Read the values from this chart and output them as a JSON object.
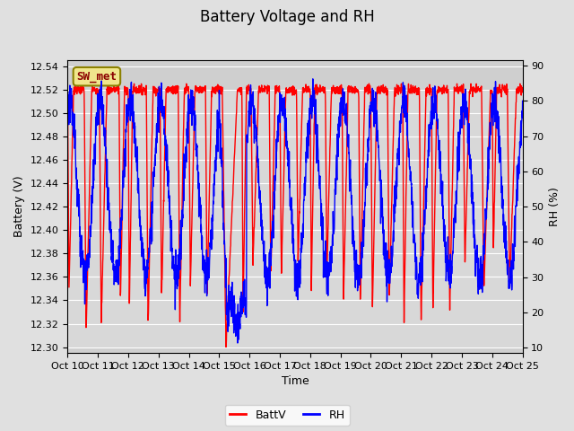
{
  "title": "Battery Voltage and RH",
  "xlabel": "Time",
  "ylabel_left": "Battery (V)",
  "ylabel_right": "RH (%)",
  "annotation": "SW_met",
  "legend_labels": [
    "BattV",
    "RH"
  ],
  "x_tick_labels": [
    "Oct 10",
    "Oct 11",
    "Oct 12",
    "Oct 13",
    "Oct 14",
    "Oct 15",
    "Oct 16",
    "Oct 17",
    "Oct 18",
    "Oct 19",
    "Oct 20",
    "Oct 21",
    "Oct 22",
    "Oct 23",
    "Oct 24",
    "Oct 25"
  ],
  "ylim_left": [
    12.295,
    12.545
  ],
  "ylim_right": [
    8.5,
    91.5
  ],
  "yticks_left": [
    12.3,
    12.32,
    12.34,
    12.36,
    12.38,
    12.4,
    12.42,
    12.44,
    12.46,
    12.48,
    12.5,
    12.52,
    12.54
  ],
  "yticks_right": [
    10,
    20,
    30,
    40,
    50,
    60,
    70,
    80,
    90
  ],
  "bg_color": "#e0e0e0",
  "plot_bg_color": "#d8d8d8",
  "stripe_color": "#cccccc",
  "line_color_battv": "red",
  "line_color_rh": "blue",
  "annotation_bg": "#f0e68c",
  "annotation_border": "#8B8000",
  "grid_color": "#ffffff",
  "title_fontsize": 12,
  "axis_fontsize": 9,
  "tick_fontsize": 8
}
